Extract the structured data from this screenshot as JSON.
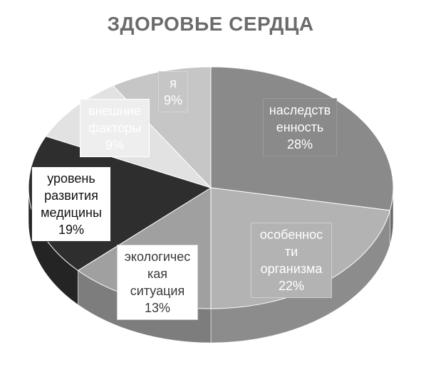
{
  "chart_data": {
    "type": "pie",
    "title": "ЗДОРОВЬЕ СЕРДЦА",
    "slices": [
      {
        "label": "наследств\nенность",
        "value": 28,
        "display": "28%",
        "color": "#8a8a8a"
      },
      {
        "label": "особеннос\nти\nорганизма",
        "value": 22,
        "display": "22%",
        "color": "#b3b3b3"
      },
      {
        "label": "экологичес\nкая\nситуация",
        "value": 13,
        "display": "13%",
        "color": "#a0a0a0"
      },
      {
        "label": "уровень\nразвития\nмедицины",
        "value": 19,
        "display": "19%",
        "color": "#2e2e2e"
      },
      {
        "label": "внешние\nфакторы",
        "value": 9,
        "display": "9%",
        "color": "#e2e2e2"
      },
      {
        "label": "я",
        "value": 9,
        "display": "9%",
        "color": "#c6c6c6"
      }
    ]
  }
}
